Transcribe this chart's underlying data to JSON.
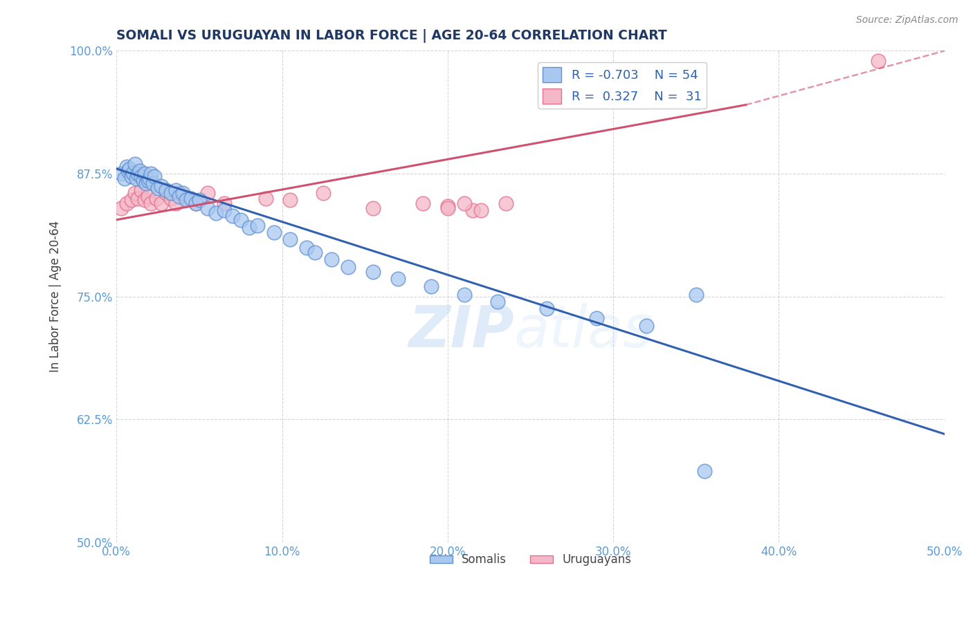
{
  "title": "SOMALI VS URUGUAYAN IN LABOR FORCE | AGE 20-64 CORRELATION CHART",
  "source_text": "Source: ZipAtlas.com",
  "ylabel": "In Labor Force | Age 20-64",
  "xlim": [
    0.0,
    0.5
  ],
  "ylim": [
    0.5,
    1.0
  ],
  "xticks": [
    0.0,
    0.1,
    0.2,
    0.3,
    0.4,
    0.5
  ],
  "xticklabels": [
    "0.0%",
    "10.0%",
    "20.0%",
    "30.0%",
    "40.0%",
    "50.0%"
  ],
  "yticks": [
    0.5,
    0.625,
    0.75,
    0.875,
    1.0
  ],
  "yticklabels": [
    "50.0%",
    "62.5%",
    "75.0%",
    "87.5%",
    "100.0%"
  ],
  "somali_color": "#A8C8F0",
  "uruguayan_color": "#F5B8C8",
  "somali_edge_color": "#6090D0",
  "uruguayan_edge_color": "#E07090",
  "trend_somali_color": "#3060B0",
  "trend_uruguayan_color": "#D05070",
  "legend_r_somali": "-0.703",
  "legend_n_somali": "54",
  "legend_r_uruguayan": "0.327",
  "legend_n_uruguayan": "31",
  "watermark_zip": "ZIP",
  "watermark_atlas": "atlas",
  "somali_x": [
    0.003,
    0.005,
    0.006,
    0.007,
    0.008,
    0.009,
    0.01,
    0.011,
    0.012,
    0.013,
    0.014,
    0.015,
    0.016,
    0.017,
    0.018,
    0.019,
    0.02,
    0.021,
    0.022,
    0.023,
    0.025,
    0.027,
    0.03,
    0.033,
    0.036,
    0.038,
    0.04,
    0.042,
    0.045,
    0.048,
    0.05,
    0.055,
    0.06,
    0.065,
    0.07,
    0.075,
    0.08,
    0.085,
    0.095,
    0.105,
    0.115,
    0.12,
    0.13,
    0.14,
    0.155,
    0.17,
    0.19,
    0.21,
    0.23,
    0.26,
    0.29,
    0.32,
    0.35,
    0.355
  ],
  "somali_y": [
    0.875,
    0.87,
    0.882,
    0.878,
    0.88,
    0.872,
    0.876,
    0.885,
    0.87,
    0.875,
    0.878,
    0.872,
    0.868,
    0.875,
    0.865,
    0.868,
    0.87,
    0.875,
    0.865,
    0.872,
    0.86,
    0.862,
    0.858,
    0.855,
    0.858,
    0.852,
    0.855,
    0.848,
    0.85,
    0.845,
    0.848,
    0.84,
    0.835,
    0.838,
    0.832,
    0.828,
    0.82,
    0.822,
    0.815,
    0.808,
    0.8,
    0.795,
    0.788,
    0.78,
    0.775,
    0.768,
    0.76,
    0.752,
    0.745,
    0.738,
    0.728,
    0.72,
    0.752,
    0.572
  ],
  "uruguayan_x": [
    0.003,
    0.006,
    0.009,
    0.011,
    0.013,
    0.015,
    0.017,
    0.019,
    0.021,
    0.024,
    0.027,
    0.03,
    0.033,
    0.036,
    0.038,
    0.042,
    0.048,
    0.055,
    0.065,
    0.09,
    0.105,
    0.125,
    0.155,
    0.185,
    0.215,
    0.2,
    0.235,
    0.2,
    0.21,
    0.22,
    0.46
  ],
  "uruguayan_y": [
    0.84,
    0.845,
    0.848,
    0.855,
    0.85,
    0.858,
    0.848,
    0.852,
    0.845,
    0.85,
    0.845,
    0.855,
    0.85,
    0.845,
    0.855,
    0.85,
    0.845,
    0.855,
    0.845,
    0.85,
    0.848,
    0.855,
    0.84,
    0.845,
    0.838,
    0.842,
    0.845,
    0.84,
    0.845,
    0.838,
    0.99
  ],
  "somali_trend_x0": 0.0,
  "somali_trend_y0": 0.88,
  "somali_trend_x1": 0.5,
  "somali_trend_y1": 0.61,
  "uruguayan_trend_x0": 0.0,
  "uruguayan_trend_y0": 0.828,
  "uruguayan_trend_x1_solid": 0.38,
  "uruguayan_trend_y1_solid": 0.945,
  "uruguayan_trend_x1_dash": 0.5,
  "uruguayan_trend_y1_dash": 1.0,
  "title_color": "#1F3864",
  "source_color": "#888888",
  "axis_label_color": "#404040",
  "tick_color": "#5B9BD5",
  "grid_color": "#BBBBBB",
  "background_color": "#FFFFFF"
}
